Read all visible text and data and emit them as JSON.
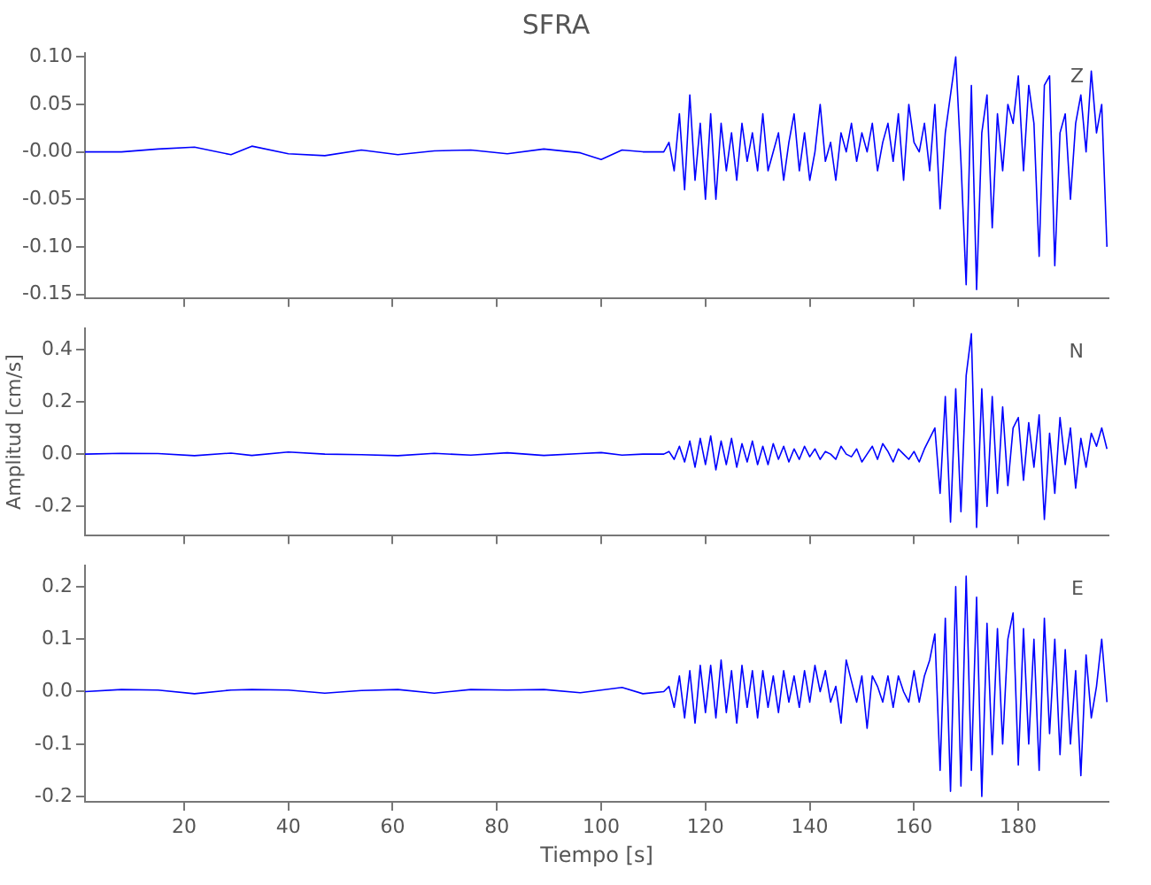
{
  "chart_data": [
    {
      "type": "line",
      "title": "SFRA",
      "marker": "none",
      "tick_labels": "y",
      "annotations": [
        "Z"
      ],
      "x": [
        1,
        8,
        15,
        22,
        29,
        33,
        40,
        47,
        54,
        61,
        68,
        75,
        82,
        89,
        96,
        100,
        104,
        108,
        112,
        113,
        114,
        115,
        116,
        117,
        118,
        119,
        120,
        121,
        122,
        123,
        124,
        125,
        126,
        127,
        128,
        129,
        130,
        131,
        132,
        133,
        134,
        135,
        136,
        137,
        138,
        139,
        140,
        141,
        142,
        143,
        144,
        145,
        146,
        147,
        148,
        149,
        150,
        151,
        152,
        153,
        154,
        155,
        156,
        157,
        158,
        159,
        160,
        161,
        162,
        163,
        164,
        165,
        166,
        167,
        168,
        169,
        170,
        171,
        172,
        173,
        174,
        175,
        176,
        177,
        178,
        179,
        180,
        181,
        182,
        183,
        184,
        185,
        186,
        187,
        188,
        189,
        190,
        191,
        192,
        193,
        194,
        195,
        196,
        197
      ],
      "xlim": [
        1,
        197.3
      ],
      "xticks": [
        20,
        40,
        60,
        80,
        100,
        120,
        140,
        160,
        180
      ],
      "ylim": [
        -0.154,
        0.104
      ],
      "yticks": [
        {
          "value": -0.15,
          "label": "-0.15"
        },
        {
          "value": -0.1,
          "label": "-0.10"
        },
        {
          "value": -0.05,
          "label": "-0.05"
        },
        {
          "value": 0,
          "label": "-0.00"
        },
        {
          "value": 0.05,
          "label": "0.05"
        },
        {
          "value": 0.1,
          "label": "0.10"
        }
      ],
      "series": [
        {
          "color": "#0000ff",
          "values": [
            0.0,
            0.0,
            0.003,
            0.005,
            -0.003,
            0.006,
            -0.002,
            -0.004,
            0.002,
            -0.003,
            0.001,
            0.002,
            -0.002,
            0.003,
            -0.001,
            -0.008,
            0.002,
            0.0,
            0.0,
            0.01,
            -0.02,
            0.04,
            -0.04,
            0.06,
            -0.03,
            0.03,
            -0.05,
            0.04,
            -0.05,
            0.03,
            -0.02,
            0.02,
            -0.03,
            0.03,
            -0.01,
            0.02,
            -0.02,
            0.04,
            -0.02,
            0.0,
            0.02,
            -0.03,
            0.01,
            0.04,
            -0.02,
            0.02,
            -0.03,
            0.0,
            0.05,
            -0.01,
            0.01,
            -0.03,
            0.02,
            0.0,
            0.03,
            -0.01,
            0.02,
            0.0,
            0.03,
            -0.02,
            0.01,
            0.03,
            -0.01,
            0.04,
            -0.03,
            0.05,
            0.01,
            0.0,
            0.03,
            -0.02,
            0.05,
            -0.06,
            0.02,
            0.06,
            0.1,
            -0.01,
            -0.14,
            0.07,
            -0.145,
            0.02,
            0.06,
            -0.08,
            0.04,
            -0.02,
            0.05,
            0.03,
            0.08,
            -0.02,
            0.07,
            0.03,
            -0.11,
            0.07,
            0.08,
            -0.12,
            0.02,
            0.04,
            -0.05,
            0.03,
            0.06,
            0.0,
            0.085,
            0.02,
            0.05,
            -0.1
          ]
        }
      ]
    },
    {
      "type": "line",
      "ylabel": "Amplitud [cm/s]",
      "marker": "none",
      "tick_labels": "y",
      "annotations": [
        "N"
      ],
      "x": [
        1,
        8,
        15,
        22,
        29,
        33,
        40,
        47,
        54,
        61,
        68,
        75,
        82,
        89,
        96,
        100,
        104,
        108,
        112,
        113,
        114,
        115,
        116,
        117,
        118,
        119,
        120,
        121,
        122,
        123,
        124,
        125,
        126,
        127,
        128,
        129,
        130,
        131,
        132,
        133,
        134,
        135,
        136,
        137,
        138,
        139,
        140,
        141,
        142,
        143,
        144,
        145,
        146,
        147,
        148,
        149,
        150,
        151,
        152,
        153,
        154,
        155,
        156,
        157,
        158,
        159,
        160,
        161,
        162,
        163,
        164,
        165,
        166,
        167,
        168,
        169,
        170,
        171,
        172,
        173,
        174,
        175,
        176,
        177,
        178,
        179,
        180,
        181,
        182,
        183,
        184,
        185,
        186,
        187,
        188,
        189,
        190,
        191,
        192,
        193,
        194,
        195,
        196,
        197
      ],
      "xlim": [
        1,
        197.3
      ],
      "xticks": [
        20,
        40,
        60,
        80,
        100,
        120,
        140,
        160,
        180
      ],
      "ylim": [
        -0.31,
        0.48
      ],
      "yticks": [
        {
          "value": -0.2,
          "label": "-0.2"
        },
        {
          "value": 0,
          "label": "0.0"
        },
        {
          "value": 0.2,
          "label": "0.2"
        },
        {
          "value": 0.4,
          "label": "0.4"
        }
      ],
      "series": [
        {
          "color": "#0000ff",
          "values": [
            0.0,
            0.003,
            0.002,
            -0.006,
            0.004,
            -0.005,
            0.008,
            0.0,
            -0.002,
            -0.006,
            0.003,
            -0.004,
            0.005,
            -0.005,
            0.002,
            0.006,
            -0.004,
            0.0,
            0.0,
            0.01,
            -0.02,
            0.03,
            -0.03,
            0.05,
            -0.05,
            0.06,
            -0.04,
            0.07,
            -0.06,
            0.05,
            -0.04,
            0.06,
            -0.05,
            0.04,
            -0.03,
            0.05,
            -0.04,
            0.03,
            -0.04,
            0.04,
            -0.02,
            0.03,
            -0.03,
            0.02,
            -0.02,
            0.03,
            -0.01,
            0.02,
            -0.02,
            0.01,
            0.0,
            -0.02,
            0.03,
            0.0,
            -0.01,
            0.02,
            -0.03,
            0.0,
            0.03,
            -0.02,
            0.04,
            0.01,
            -0.03,
            0.02,
            0.0,
            -0.02,
            0.01,
            -0.03,
            0.02,
            0.06,
            0.1,
            -0.15,
            0.22,
            -0.26,
            0.25,
            -0.22,
            0.3,
            0.46,
            -0.28,
            0.25,
            -0.2,
            0.22,
            -0.15,
            0.18,
            -0.12,
            0.1,
            0.14,
            -0.1,
            0.12,
            -0.05,
            0.15,
            -0.25,
            0.08,
            -0.15,
            0.14,
            -0.04,
            0.1,
            -0.13,
            0.06,
            -0.05,
            0.08,
            0.03,
            0.1,
            0.02
          ]
        }
      ]
    },
    {
      "type": "line",
      "xlabel": "Tiempo [s]",
      "marker": "none",
      "annotations": [
        "E"
      ],
      "x": [
        1,
        8,
        15,
        22,
        29,
        33,
        40,
        47,
        54,
        61,
        68,
        75,
        82,
        89,
        96,
        100,
        104,
        108,
        112,
        113,
        114,
        115,
        116,
        117,
        118,
        119,
        120,
        121,
        122,
        123,
        124,
        125,
        126,
        127,
        128,
        129,
        130,
        131,
        132,
        133,
        134,
        135,
        136,
        137,
        138,
        139,
        140,
        141,
        142,
        143,
        144,
        145,
        146,
        147,
        148,
        149,
        150,
        151,
        152,
        153,
        154,
        155,
        156,
        157,
        158,
        159,
        160,
        161,
        162,
        163,
        164,
        165,
        166,
        167,
        168,
        169,
        170,
        171,
        172,
        173,
        174,
        175,
        176,
        177,
        178,
        179,
        180,
        181,
        182,
        183,
        184,
        185,
        186,
        187,
        188,
        189,
        190,
        191,
        192,
        193,
        194,
        195,
        196,
        197
      ],
      "xlim": [
        1,
        197.3
      ],
      "xticks": [
        20,
        40,
        60,
        80,
        100,
        120,
        140,
        160,
        180
      ],
      "ylim": [
        -0.21,
        0.24
      ],
      "yticks": [
        {
          "value": -0.2,
          "label": "-0.2"
        },
        {
          "value": -0.1,
          "label": "-0.1"
        },
        {
          "value": 0,
          "label": "0.0"
        },
        {
          "value": 0.1,
          "label": "0.1"
        },
        {
          "value": 0.2,
          "label": "0.2"
        }
      ],
      "series": [
        {
          "color": "#0000ff",
          "values": [
            0.0,
            0.004,
            0.003,
            -0.004,
            0.003,
            0.004,
            0.003,
            -0.003,
            0.002,
            0.004,
            -0.003,
            0.004,
            0.003,
            0.004,
            -0.002,
            0.003,
            0.008,
            -0.004,
            0.0,
            0.01,
            -0.03,
            0.03,
            -0.05,
            0.04,
            -0.06,
            0.05,
            -0.04,
            0.05,
            -0.05,
            0.06,
            -0.04,
            0.04,
            -0.06,
            0.05,
            -0.03,
            0.04,
            -0.05,
            0.04,
            -0.03,
            0.03,
            -0.04,
            0.04,
            -0.02,
            0.03,
            -0.03,
            0.04,
            -0.02,
            0.05,
            0.0,
            0.04,
            -0.02,
            0.01,
            -0.06,
            0.06,
            0.02,
            -0.02,
            0.03,
            -0.07,
            0.03,
            0.01,
            -0.02,
            0.03,
            -0.03,
            0.03,
            0.0,
            -0.02,
            0.04,
            -0.02,
            0.03,
            0.06,
            0.11,
            -0.15,
            0.14,
            -0.19,
            0.2,
            -0.18,
            0.22,
            -0.15,
            0.18,
            -0.2,
            0.13,
            -0.12,
            0.12,
            -0.1,
            0.1,
            0.15,
            -0.14,
            0.12,
            -0.1,
            0.1,
            -0.15,
            0.14,
            -0.08,
            0.1,
            -0.12,
            0.08,
            -0.1,
            0.04,
            -0.16,
            0.07,
            -0.05,
            0.01,
            0.1,
            -0.02
          ]
        }
      ]
    }
  ]
}
